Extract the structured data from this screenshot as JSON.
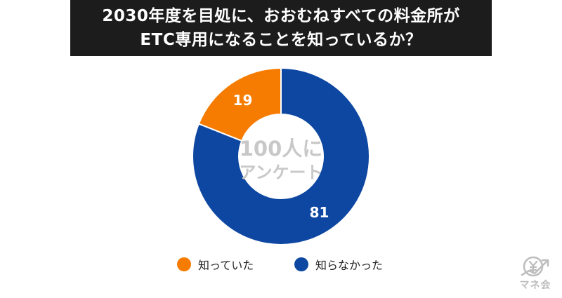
{
  "title": {
    "line1": "2030年度を目処に、おおむねすべての料金所が",
    "line2": "ETC専用になることを知っているか？"
  },
  "center_label": {
    "line1": "100人に",
    "line2": "アンケート"
  },
  "colors": {
    "orange": "#F57C00",
    "blue": "#0D47A1",
    "title_bg": "#1c1c1c",
    "center_text": "#c8c8c8"
  },
  "chart_data": {
    "type": "pie",
    "donut": true,
    "categories": [
      "知っていた",
      "知らなかった"
    ],
    "values": [
      19,
      81
    ],
    "colors": [
      "#F57C00",
      "#0D47A1"
    ],
    "legend_position": "bottom"
  },
  "legend": [
    {
      "label": "知っていた",
      "color": "#F57C00"
    },
    {
      "label": "知らなかった",
      "color": "#0D47A1"
    }
  ],
  "logo": {
    "text": "マネ会",
    "icon": "yen-growth-icon"
  }
}
